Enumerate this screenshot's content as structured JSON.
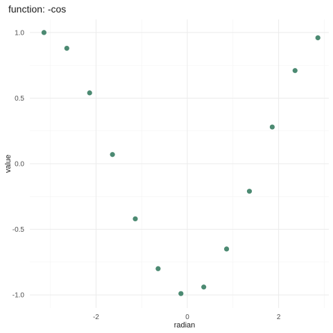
{
  "chart_data": {
    "type": "scatter",
    "title": "function: -cos",
    "xlabel": "radian",
    "ylabel": "value",
    "xlim": [
      -3.45,
      3.1
    ],
    "ylim": [
      -1.1,
      1.1
    ],
    "x_ticks": [
      -2,
      0,
      2
    ],
    "x_tick_labels": [
      "-2",
      "0",
      "2"
    ],
    "y_ticks": [
      -1.0,
      -0.5,
      0.0,
      0.5,
      1.0
    ],
    "y_tick_labels": [
      "-1.0",
      "-0.5",
      "0.0",
      "0.5",
      "1.0"
    ],
    "grid": true,
    "point_color": "#4c8a72",
    "x": [
      -3.14,
      -2.64,
      -2.14,
      -1.64,
      -1.14,
      -0.64,
      -0.14,
      0.36,
      0.86,
      1.36,
      1.86,
      2.36,
      2.86
    ],
    "y": [
      1.0,
      0.88,
      0.54,
      0.07,
      -0.42,
      -0.8,
      -0.99,
      -0.94,
      -0.65,
      -0.21,
      0.28,
      0.71,
      0.96
    ]
  }
}
